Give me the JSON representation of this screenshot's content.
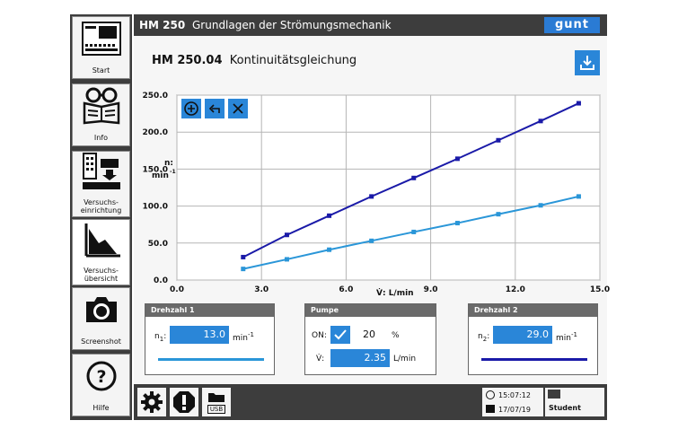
{
  "header": {
    "model": "HM 250",
    "title": "Grundlagen der Strömungsmechanik",
    "logo": "gunt"
  },
  "sidebar": {
    "items": [
      {
        "label": "Start"
      },
      {
        "label": "Info"
      },
      {
        "label": "Versuchs-\neinrichtung"
      },
      {
        "label": "Versuchs-\nübersicht"
      },
      {
        "label": "Screenshot"
      },
      {
        "label": "Hilfe"
      }
    ]
  },
  "page": {
    "code": "HM 250.04",
    "title": "Kontinuitätsgleichung"
  },
  "chart_data": {
    "type": "line",
    "xlabel": "V̇: L/min",
    "ylabel_line1": "n:",
    "ylabel_line2": "min",
    "ylabel_sup": "-1",
    "xlim": [
      0,
      15
    ],
    "ylim": [
      0,
      250
    ],
    "xticks": [
      "0.0",
      "3.0",
      "6.0",
      "9.0",
      "12.0",
      "15.0"
    ],
    "yticks": [
      "0.0",
      "50.0",
      "100.0",
      "150.0",
      "200.0",
      "250.0"
    ],
    "series": [
      {
        "color": "#1a1aa8",
        "x": [
          2.35,
          3.9,
          5.4,
          6.9,
          8.4,
          9.95,
          11.4,
          12.9,
          14.25
        ],
        "y": [
          31,
          61,
          87,
          113,
          138,
          164,
          189,
          215,
          239
        ]
      },
      {
        "color": "#2a96d8",
        "x": [
          2.35,
          3.9,
          5.4,
          6.9,
          8.4,
          9.95,
          11.4,
          12.9,
          14.25
        ],
        "y": [
          15,
          28,
          41,
          53,
          65,
          77,
          89,
          101,
          113
        ]
      }
    ]
  },
  "panels": {
    "drehzahl1": {
      "title": "Drehzahl 1",
      "sym": "n",
      "sub": "1",
      "value": "13.0",
      "unit": "min",
      "unit_sup": "-1",
      "line_color": "#2a96d8"
    },
    "pumpe": {
      "title": "Pumpe",
      "on_label": "ON:",
      "percent": "20",
      "percent_unit": "%",
      "flow_label": "V̇:",
      "flow": "2.35",
      "flow_unit": "L/min"
    },
    "drehzahl2": {
      "title": "Drehzahl 2",
      "sym": "n",
      "sub": "2",
      "value": "29.0",
      "unit": "min",
      "unit_sup": "-1",
      "line_color": "#1a1aa8"
    }
  },
  "status": {
    "time": "15:07:12",
    "date": "17/07/19",
    "user": "Student",
    "usb": "USB"
  }
}
